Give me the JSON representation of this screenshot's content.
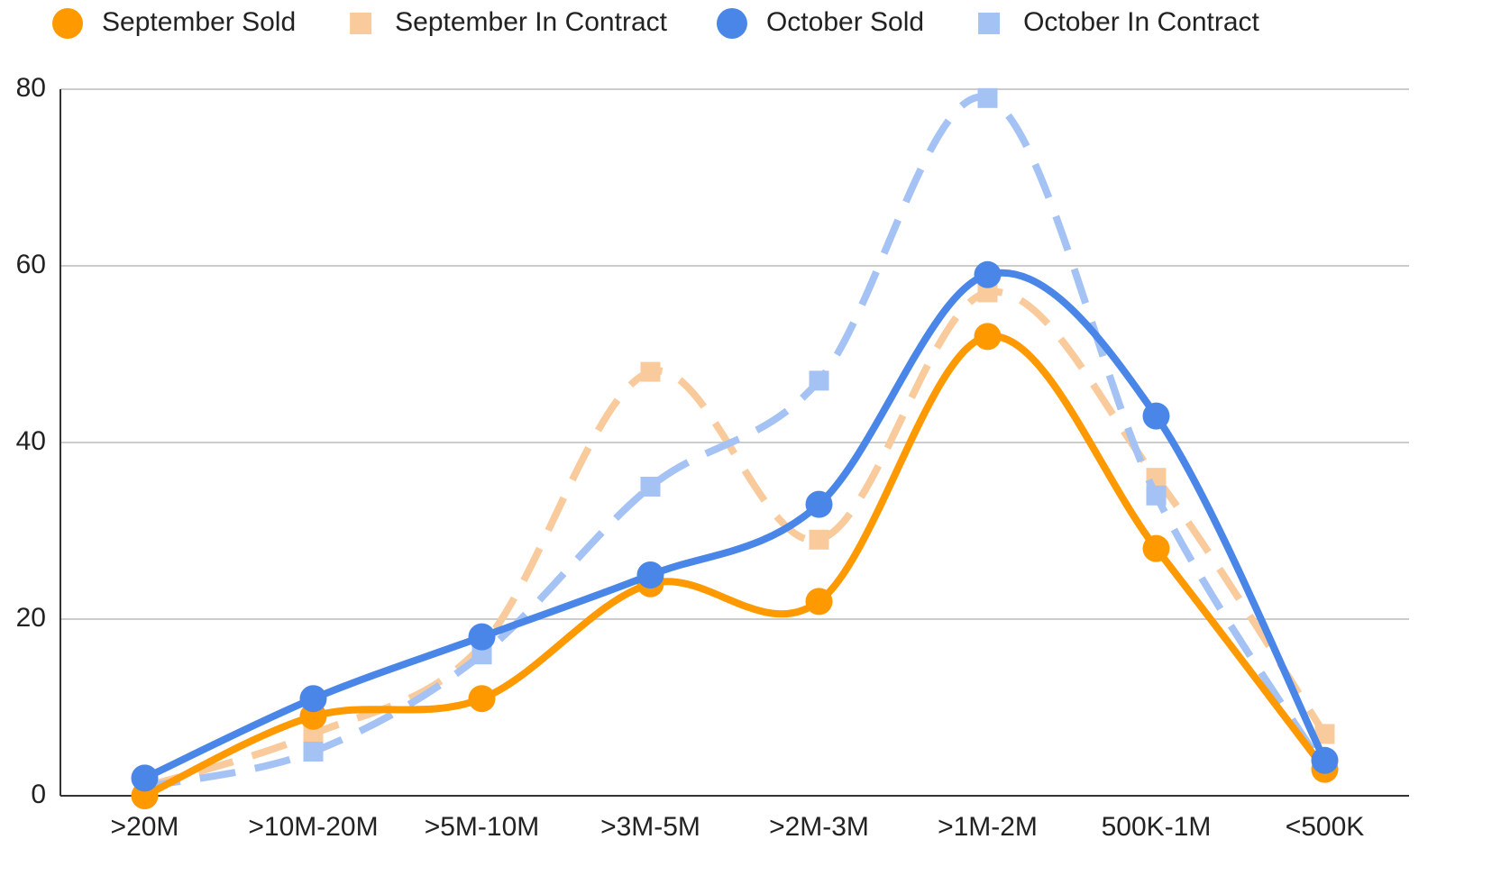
{
  "chart_data": {
    "type": "line",
    "categories": [
      ">20M",
      ">10M-20M",
      ">5M-10M",
      ">3M-5M",
      ">2M-3M",
      ">1M-2M",
      "500K-1M",
      "<500K"
    ],
    "series": [
      {
        "name": "September Sold",
        "color": "#ff9900",
        "line_style": "solid",
        "marker": "circle",
        "values": [
          0,
          9,
          11,
          24,
          22,
          52,
          28,
          3
        ]
      },
      {
        "name": "September In Contract",
        "color": "#f9cb9c",
        "line_style": "dashed",
        "marker": "square",
        "values": [
          1,
          7,
          17,
          48,
          29,
          57,
          36,
          7
        ]
      },
      {
        "name": "October Sold",
        "color": "#4a86e8",
        "line_style": "solid",
        "marker": "circle",
        "values": [
          2,
          11,
          18,
          25,
          33,
          59,
          43,
          4
        ]
      },
      {
        "name": "October In Contract",
        "color": "#a4c2f4",
        "line_style": "dashed",
        "marker": "square",
        "values": [
          1,
          5,
          16,
          35,
          47,
          79,
          34,
          3
        ]
      }
    ],
    "ylim": [
      0,
      80
    ],
    "yticks": [
      0,
      20,
      40,
      60,
      80
    ],
    "grid": true,
    "smooth": true,
    "legend": "top"
  }
}
